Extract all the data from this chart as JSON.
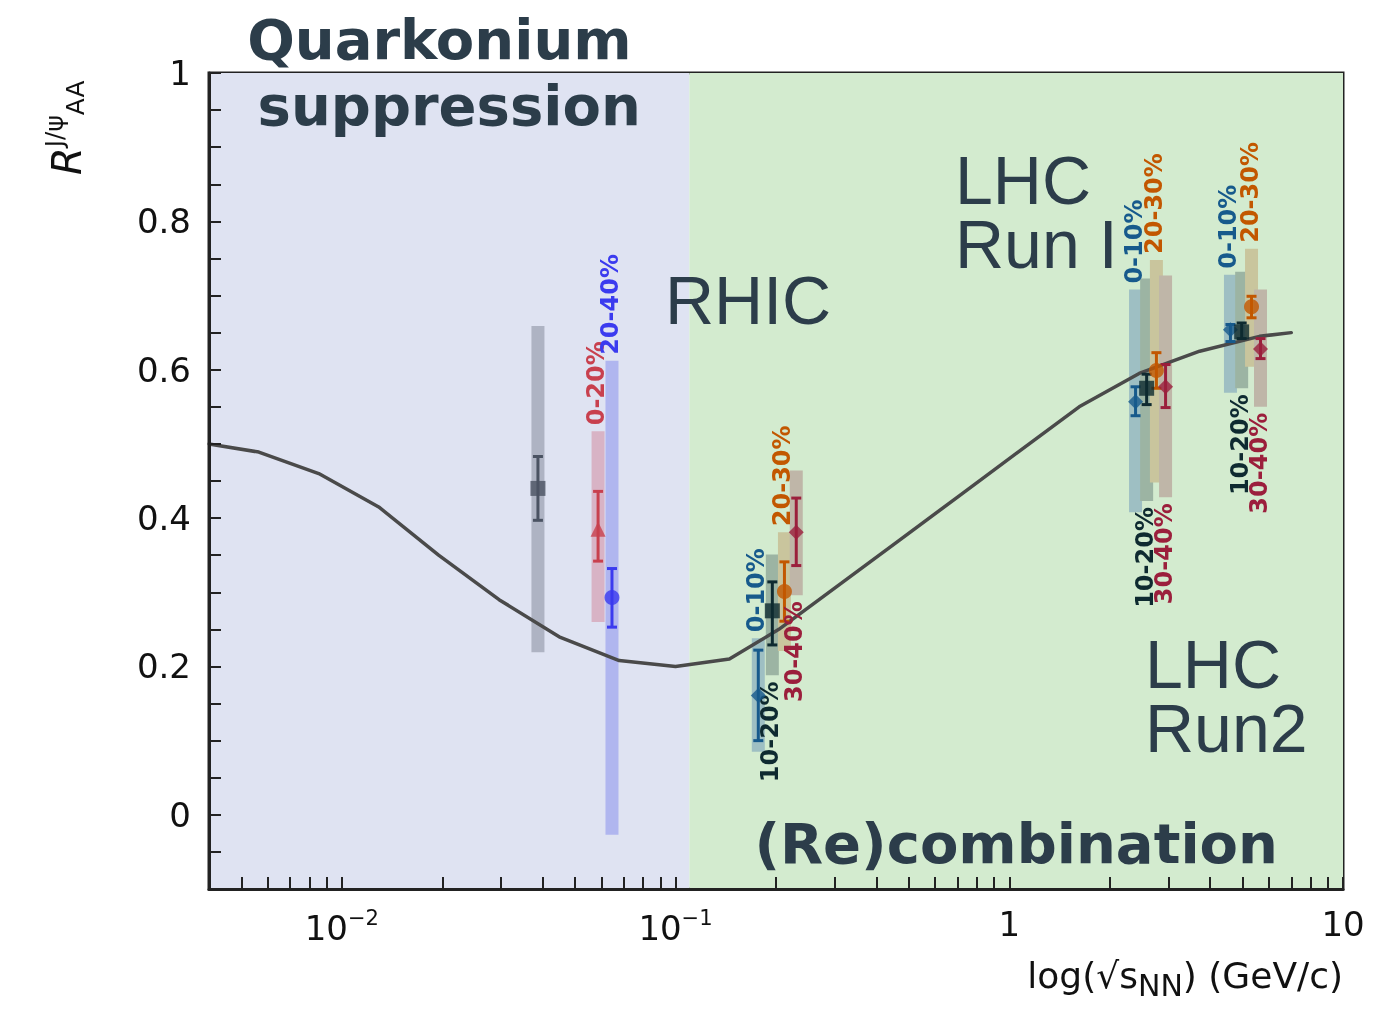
{
  "chart_data": {
    "type": "scatter",
    "log": "x",
    "xlabel": "log(√s$_{NN}$) (GeV/c)",
    "ylabel": "R$^{J/ψ}$$_{AA}$",
    "xlim": [
      0.004,
      10
    ],
    "ylim": [
      -0.1,
      1
    ],
    "xticks": [
      {
        "value": 0.005,
        "label": null
      },
      {
        "value": 0.006,
        "label": null
      },
      {
        "value": 0.007,
        "label": null
      },
      {
        "value": 0.008,
        "label": null
      },
      {
        "value": 0.009,
        "label": null
      },
      {
        "value": 0.01,
        "label": "10$^{−2}$"
      },
      {
        "value": 0.02,
        "label": null
      },
      {
        "value": 0.03,
        "label": null
      },
      {
        "value": 0.04,
        "label": null
      },
      {
        "value": 0.05,
        "label": null
      },
      {
        "value": 0.06,
        "label": null
      },
      {
        "value": 0.07,
        "label": null
      },
      {
        "value": 0.08,
        "label": null
      },
      {
        "value": 0.09,
        "label": null
      },
      {
        "value": 0.1,
        "label": "10$^{−1}$"
      },
      {
        "value": 0.2,
        "label": null
      },
      {
        "value": 0.3,
        "label": null
      },
      {
        "value": 0.4,
        "label": null
      },
      {
        "value": 0.5,
        "label": null
      },
      {
        "value": 0.6,
        "label": null
      },
      {
        "value": 0.7,
        "label": null
      },
      {
        "value": 0.8,
        "label": null
      },
      {
        "value": 0.9,
        "label": null
      },
      1,
      {
        "value": 2,
        "label": null
      },
      {
        "value": 3,
        "label": null
      },
      {
        "value": 4,
        "label": null
      },
      {
        "value": 5,
        "label": null
      },
      {
        "value": 6,
        "label": null
      },
      {
        "value": 7,
        "label": null
      },
      {
        "value": 8,
        "label": null
      },
      {
        "value": 9,
        "label": null
      },
      10
    ],
    "yticks": [
      {
        "value": -0.05,
        "label": null
      },
      0,
      {
        "value": 0.05,
        "label": null
      },
      {
        "value": 0.1,
        "label": null
      },
      {
        "value": 0.15,
        "label": null
      },
      0.2,
      {
        "value": 0.25,
        "label": null
      },
      {
        "value": 0.3,
        "label": null
      },
      {
        "value": 0.35,
        "label": null
      },
      0.4,
      {
        "value": 0.45,
        "label": null
      },
      {
        "value": 0.5,
        "label": null
      },
      {
        "value": 0.55,
        "label": null
      },
      0.6,
      {
        "value": 0.65,
        "label": null
      },
      {
        "value": 0.7,
        "label": null
      },
      {
        "value": 0.75,
        "label": null
      },
      0.8,
      {
        "value": 0.85,
        "label": null
      },
      {
        "value": 0.9,
        "label": null
      },
      {
        "value": 0.95,
        "label": null
      },
      1
    ],
    "bands": [
      {
        "axis": "x",
        "from": 0.004,
        "to": 0.11,
        "label": "Quarkonium suppression",
        "color": "#dfe3f2"
      },
      {
        "axis": "x",
        "from": 0.11,
        "to": 10,
        "label": "(Re)combination",
        "color": "#d3ebcf"
      }
    ],
    "annotations": [
      "RHIC",
      "LHC Run I",
      "LHC Run2"
    ],
    "series": [
      {
        "type": "bar",
        "color": "#aeb3c3",
        "x": [
          0.0387
        ],
        "base": [
          0.219
        ],
        "values": [
          0.44
        ]
      },
      {
        "type": "bar",
        "color": "#d8b3c5",
        "x": [
          0.0586
        ],
        "base": [
          0.26
        ],
        "values": [
          0.257
        ]
      },
      {
        "type": "bar",
        "color": "#b0b6ef",
        "x": [
          0.0645
        ],
        "base": [
          -0.027
        ],
        "values": [
          0.639
        ]
      },
      {
        "type": "bar",
        "color": "#9ebfc3",
        "x": [
          0.177,
          2.39,
          4.6
        ],
        "base": [
          0.085,
          0.408,
          0.569
        ],
        "values": [
          0.153,
          0.3,
          0.159
        ]
      },
      {
        "type": "bar",
        "color": "#9cb4a3",
        "x": [
          0.195,
          2.58,
          4.97
        ],
        "base": [
          0.188,
          0.423,
          0.575
        ],
        "values": [
          0.163,
          0.3,
          0.157
        ]
      },
      {
        "type": "bar",
        "color": "#c9c59d",
        "x": [
          0.212,
          2.76,
          5.32
        ],
        "base": [
          0.221,
          0.448,
          0.604
        ],
        "values": [
          0.16,
          0.3,
          0.159
        ]
      },
      {
        "type": "bar",
        "color": "#bfb6a8",
        "x": [
          0.23,
          2.94,
          5.66
        ],
        "base": [
          0.296,
          0.428,
          0.55
        ],
        "values": [
          0.168,
          0.299,
          0.158
        ]
      },
      {
        "type": "line",
        "color": "#4a4a4a",
        "x": [
          0.004,
          0.00564,
          0.00853,
          0.0129,
          0.0195,
          0.0296,
          0.0448,
          0.0678,
          0.1,
          0.145,
          0.204,
          0.309,
          0.468,
          0.708,
          1.07,
          1.62,
          2.45,
          3.72,
          5.62,
          7.0
        ],
        "values": [
          0.5,
          0.489,
          0.46,
          0.415,
          0.35,
          0.29,
          0.24,
          0.208,
          0.2,
          0.21,
          0.25,
          0.31,
          0.37,
          0.43,
          0.49,
          0.55,
          0.595,
          0.625,
          0.645,
          0.65
        ]
      },
      {
        "marker": "square",
        "color": "#4b5363",
        "x": [
          0.0387
        ],
        "values": [
          0.44
        ],
        "errors": [
          [
            0.397,
            0.483
          ]
        ]
      },
      {
        "name": "0-20%",
        "marker": "triangle",
        "color": "#c8404e",
        "x": [
          0.0586
        ],
        "values": [
          0.385
        ],
        "errors": [
          [
            0.342,
            0.436
          ]
        ]
      },
      {
        "name": "20-40%",
        "marker": "circle",
        "color": "#3b3bef",
        "x": [
          0.0645
        ],
        "values": [
          0.293
        ],
        "errors": [
          [
            0.253,
            0.332
          ]
        ]
      },
      {
        "name": "0-10%",
        "marker": "diamond",
        "color": "#175a8c",
        "x": [
          0.177,
          2.39,
          4.6
        ],
        "values": [
          0.161,
          0.557,
          0.654
        ],
        "errors": [
          [
            0.1,
            0.222
          ],
          [
            0.538,
            0.577
          ],
          [
            0.638,
            0.661
          ]
        ]
      },
      {
        "name": "10-20%",
        "marker": "square",
        "color": "#0e2a30",
        "x": [
          0.195,
          2.58,
          4.97
        ],
        "values": [
          0.275,
          0.575,
          0.651
        ],
        "errors": [
          [
            0.229,
            0.314
          ],
          [
            0.553,
            0.594
          ],
          [
            0.642,
            0.663
          ]
        ]
      },
      {
        "name": "20-30%",
        "marker": "circle",
        "color": "#c25700",
        "x": [
          0.212,
          2.76,
          5.32
        ],
        "values": [
          0.301,
          0.599,
          0.685
        ],
        "errors": [
          [
            0.261,
            0.341
          ],
          [
            0.575,
            0.623
          ],
          [
            0.67,
            0.699
          ]
        ]
      },
      {
        "name": "30-40%",
        "marker": "diamond",
        "color": "#9b1f3c",
        "x": [
          0.23,
          2.94,
          5.66
        ],
        "values": [
          0.381,
          0.577,
          0.628
        ],
        "errors": [
          [
            0.336,
            0.427
          ],
          [
            0.549,
            0.607
          ],
          [
            0.615,
            0.642
          ]
        ]
      }
    ]
  }
}
